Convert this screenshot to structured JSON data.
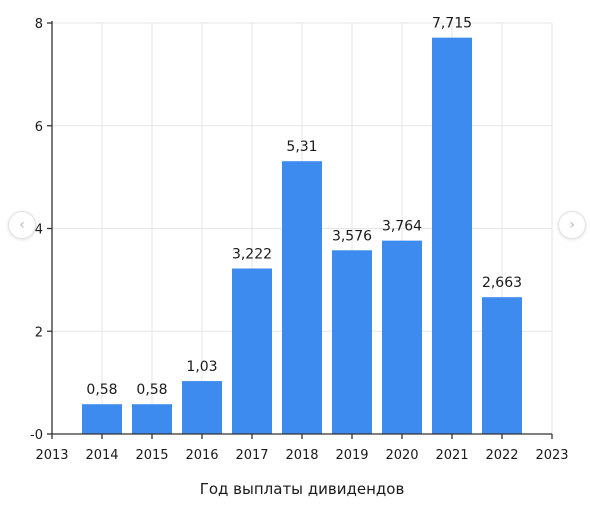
{
  "chart_data": {
    "type": "bar",
    "title": "",
    "xlabel": "Год выплаты дивидендов",
    "ylabel": "",
    "x": [
      2014,
      2015,
      2016,
      2017,
      2018,
      2019,
      2020,
      2021,
      2022
    ],
    "values": [
      0.58,
      0.58,
      1.03,
      3.222,
      5.31,
      3.576,
      3.764,
      7.715,
      2.663
    ],
    "data_labels": [
      "0,58",
      "0,58",
      "1,03",
      "3,222",
      "5,31",
      "3,576",
      "3,764",
      "7,715",
      "2,663"
    ],
    "xlim": [
      2013,
      2023
    ],
    "ylim": [
      0,
      8
    ],
    "x_ticks": [
      "2013",
      "2014",
      "2015",
      "2016",
      "2017",
      "2018",
      "2019",
      "2020",
      "2021",
      "2022",
      "2023"
    ],
    "y_ticks": [
      {
        "value": 0,
        "label": "-0"
      },
      {
        "value": 2,
        "label": "2"
      },
      {
        "value": 4,
        "label": "4"
      },
      {
        "value": 6,
        "label": "6"
      },
      {
        "value": 8,
        "label": "8"
      }
    ],
    "grid": true,
    "bar_color": "#3d8bef",
    "grid_color": "#e6e6e6",
    "axis_color": "#333333"
  },
  "nav": {
    "prev_icon": "chevron-left-icon",
    "next_icon": "chevron-right-icon",
    "prev_glyph": "‹",
    "next_glyph": "›"
  }
}
